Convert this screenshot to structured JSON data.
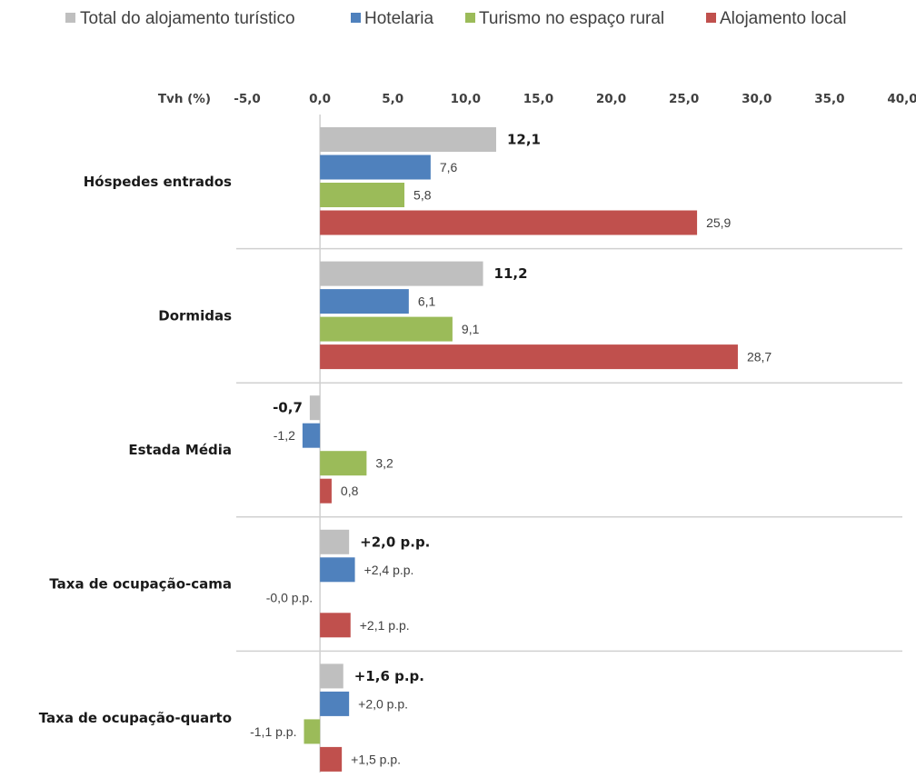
{
  "chart_data": {
    "type": "bar",
    "orientation": "horizontal",
    "axis_title": "Tvh (%)",
    "xlim": [
      -5,
      40
    ],
    "x_ticks": [
      "-5,0",
      "0,0",
      "5,0",
      "10,0",
      "15,0",
      "20,0",
      "25,0",
      "30,0",
      "35,0",
      "40,0"
    ],
    "legend_position": "top",
    "categories": [
      "Hóspedes entrados",
      "Dormidas",
      "Estada Média",
      "Taxa de ocupação-cama",
      "Taxa de ocupação-quarto"
    ],
    "series": [
      {
        "name": "Total do alojamento turístico",
        "color": "#bfbfbf",
        "values": [
          12.1,
          11.2,
          -0.7,
          2.0,
          1.6
        ],
        "labels": [
          "12,1",
          "11,2",
          "-0,7",
          "+2,0 p.p.",
          "+1,6 p.p."
        ],
        "bold": true
      },
      {
        "name": "Hotelaria",
        "color": "#4f81bd",
        "values": [
          7.6,
          6.1,
          -1.2,
          2.4,
          2.0
        ],
        "labels": [
          "7,6",
          "6,1",
          "-1,2",
          "+2,4 p.p.",
          "+2,0 p.p."
        ],
        "bold": false
      },
      {
        "name": "Turismo no espaço rural",
        "color": "#9bbb59",
        "values": [
          5.8,
          9.1,
          3.2,
          -0.0,
          -1.1
        ],
        "labels": [
          "5,8",
          "9,1",
          "3,2",
          "-0,0 p.p.",
          "-1,1 p.p."
        ],
        "bold": false
      },
      {
        "name": "Alojamento local",
        "color": "#c0504d",
        "values": [
          25.9,
          28.7,
          0.8,
          2.1,
          1.5
        ],
        "labels": [
          "25,9",
          "28,7",
          "0,8",
          "+2,1 p.p.",
          "+1,5 p.p."
        ],
        "bold": false
      }
    ]
  }
}
